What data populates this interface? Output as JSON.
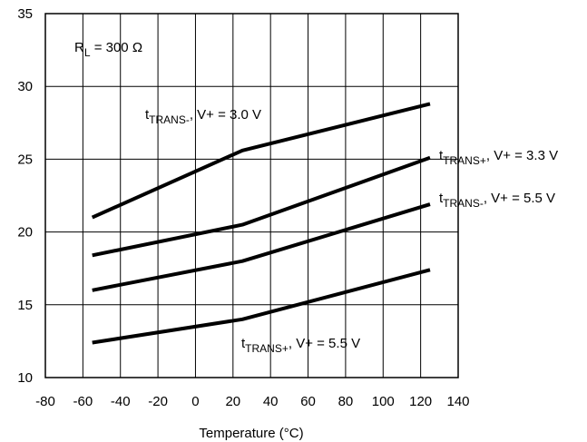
{
  "chart_data": {
    "type": "line",
    "title": "",
    "xlabel": "Temperature (°C)",
    "ylabel": "",
    "xlim": [
      -80,
      140
    ],
    "ylim": [
      10,
      35
    ],
    "xticks": [
      -80,
      -60,
      -40,
      -20,
      0,
      20,
      40,
      60,
      80,
      100,
      120,
      140
    ],
    "yticks": [
      10,
      15,
      20,
      25,
      30,
      35
    ],
    "grid": true,
    "annotation": {
      "main": "R",
      "sub": "L",
      "tail": " = 300 Ω"
    },
    "series": [
      {
        "label": {
          "main": "t",
          "sub": "TRANS-",
          "tail": ", V+ = 3.0 V"
        },
        "x": [
          -55,
          25,
          125
        ],
        "y": [
          21.0,
          25.6,
          28.8
        ]
      },
      {
        "label": {
          "main": "t",
          "sub": "TRANS+",
          "tail": ", V+ = 3.3 V"
        },
        "x": [
          -55,
          25,
          125
        ],
        "y": [
          18.4,
          20.5,
          25.1
        ]
      },
      {
        "label": {
          "main": "t",
          "sub": "TRANS-",
          "tail": ", V+ = 5.5 V"
        },
        "x": [
          -55,
          25,
          125
        ],
        "y": [
          16.0,
          18.0,
          21.9
        ]
      },
      {
        "label": {
          "main": "t",
          "sub": "TRANS+",
          "tail": ", V+ = 5.5 V"
        },
        "x": [
          -55,
          25,
          125
        ],
        "y": [
          12.4,
          14.0,
          17.4
        ]
      }
    ]
  }
}
